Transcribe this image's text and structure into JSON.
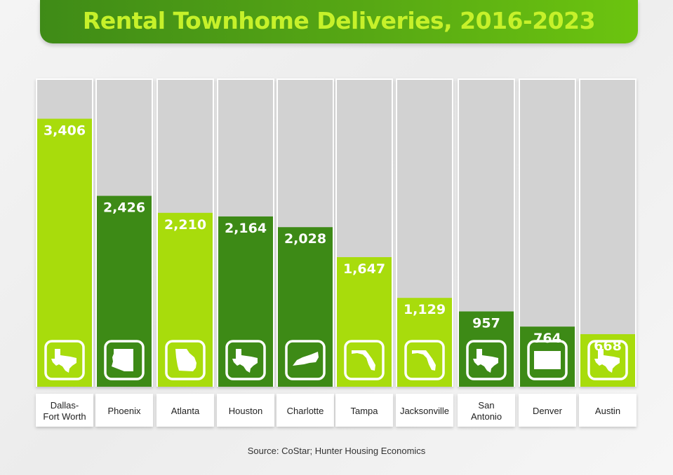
{
  "chart_data": {
    "type": "bar",
    "title": "Rental Townhome Deliveries, 2016-2023",
    "categories": [
      "Dallas-\nFort Worth",
      "Phoenix",
      "Atlanta",
      "Houston",
      "Charlotte",
      "Tampa",
      "Jacksonville",
      "San\nAntonio",
      "Denver",
      "Austin"
    ],
    "values": [
      3406,
      2426,
      2210,
      2164,
      2028,
      1647,
      1129,
      957,
      764,
      668
    ],
    "value_labels": [
      "3,406",
      "2,426",
      "2,210",
      "2,164",
      "2,028",
      "1,647",
      "1,129",
      "957",
      "764",
      "668"
    ],
    "state_icons": [
      "texas-icon",
      "arizona-icon",
      "georgia-icon",
      "texas-icon",
      "north-carolina-icon",
      "florida-icon",
      "florida-icon",
      "texas-icon",
      "colorado-icon",
      "texas-icon"
    ],
    "bar_colors": [
      "#a8dc0c",
      "#3d8a16",
      "#a8dc0c",
      "#3d8a16",
      "#3d8a16",
      "#a8dc0c",
      "#a8dc0c",
      "#3d8a16",
      "#3d8a16",
      "#a8dc0c"
    ],
    "ylim": [
      0,
      3900
    ],
    "grid": false,
    "legend": "none",
    "source": "Source: CoStar; Hunter Housing Economics"
  },
  "colors": {
    "light_green": "#a8dc0c",
    "dark_green": "#3d8a16",
    "track_gray": "#d2d2d2",
    "title_green": "#c6f12a"
  }
}
